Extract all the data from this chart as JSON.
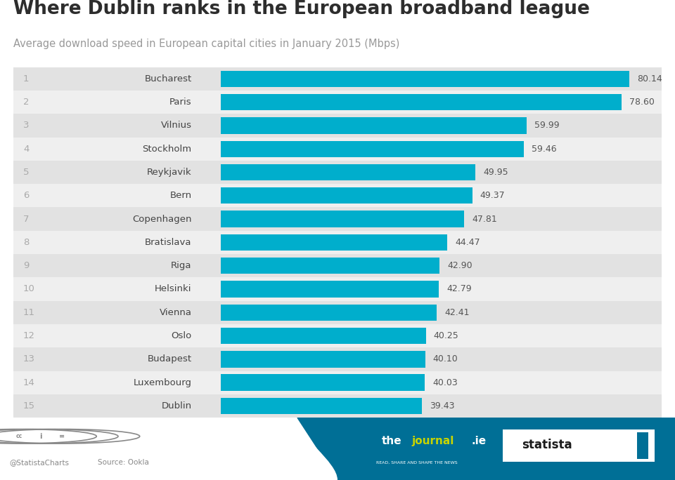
{
  "title": "Where Dublin ranks in the European broadband league",
  "subtitle": "Average download speed in European capital cities in January 2015 (Mbps)",
  "ranks": [
    1,
    2,
    3,
    4,
    5,
    6,
    7,
    8,
    9,
    10,
    11,
    12,
    13,
    14,
    15
  ],
  "cities": [
    "Bucharest",
    "Paris",
    "Vilnius",
    "Stockholm",
    "Reykjavik",
    "Bern",
    "Copenhagen",
    "Bratislava",
    "Riga",
    "Helsinki",
    "Vienna",
    "Oslo",
    "Budapest",
    "Luxembourg",
    "Dublin"
  ],
  "values": [
    80.14,
    78.6,
    59.99,
    59.46,
    49.95,
    49.37,
    47.81,
    44.47,
    42.9,
    42.79,
    42.41,
    40.25,
    40.1,
    40.03,
    39.43
  ],
  "bar_color": "#00AECC",
  "bg_color_odd": "#e2e2e2",
  "bg_color_even": "#efefef",
  "title_color": "#2d2d2d",
  "subtitle_color": "#999999",
  "rank_color": "#aaaaaa",
  "city_color": "#444444",
  "value_color": "#555555",
  "footer_bg": "#006f96",
  "footer_wave_color": "#006f96"
}
